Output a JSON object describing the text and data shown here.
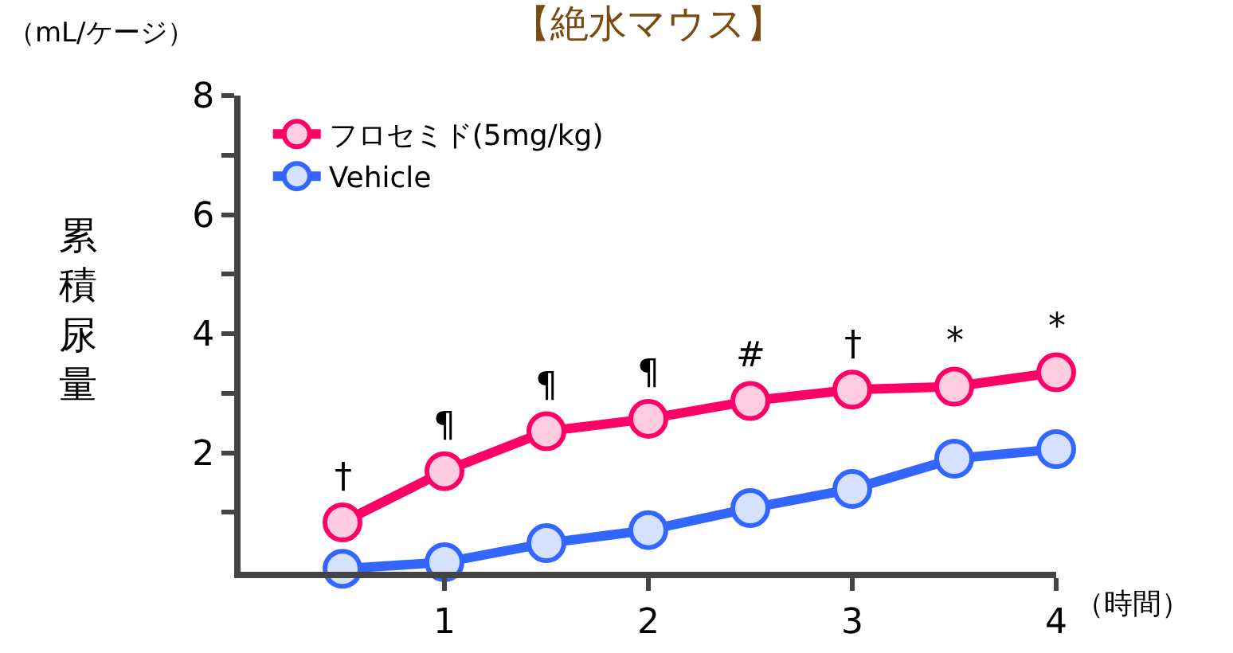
{
  "chart_data": {
    "type": "line",
    "title": "【絶水マウス】",
    "xlabel": "（時間）",
    "ylabel": "累積尿量",
    "x": [
      0.5,
      1,
      1.5,
      2,
      2.5,
      3,
      3.5,
      4
    ],
    "series": [
      {
        "name": "フロセミド(5mg/kg)",
        "color": "#ff0066",
        "values": [
          0.83,
          1.69,
          2.36,
          2.57,
          2.87,
          3.06,
          3.11,
          3.35
        ]
      },
      {
        "name": "Vehicle",
        "color": "#3366ff",
        "values": [
          0.05,
          0.16,
          0.48,
          0.7,
          1.07,
          1.39,
          1.9,
          2.06
        ]
      }
    ],
    "xlim": [
      0,
      4
    ],
    "xticks": [
      1,
      2,
      3,
      4
    ],
    "ylim": [
      0,
      8
    ],
    "yticks": [
      {
        "value": 1,
        "label": null
      },
      2,
      {
        "value": 3,
        "label": null
      },
      4,
      {
        "value": 5,
        "label": null
      },
      6,
      {
        "value": 7,
        "label": null
      },
      8
    ],
    "annotations": [
      "（mL/ケージ）",
      {
        "text": "†",
        "x": 0.5,
        "y": 0.83
      },
      {
        "text": "¶",
        "x": 1,
        "y": 1.69
      },
      {
        "text": "¶",
        "x": 1.5,
        "y": 2.36
      },
      {
        "text": "¶",
        "x": 2,
        "y": 2.57
      },
      {
        "text": "#",
        "x": 2.5,
        "y": 2.87
      },
      {
        "text": "†",
        "x": 3,
        "y": 3.06
      },
      {
        "text": "*",
        "x": 3.5,
        "y": 3.11
      },
      {
        "text": "*",
        "x": 4,
        "y": 3.35
      }
    ],
    "grid": false,
    "legend": "top left",
    "marker": "circle",
    "line_style": "solid"
  }
}
